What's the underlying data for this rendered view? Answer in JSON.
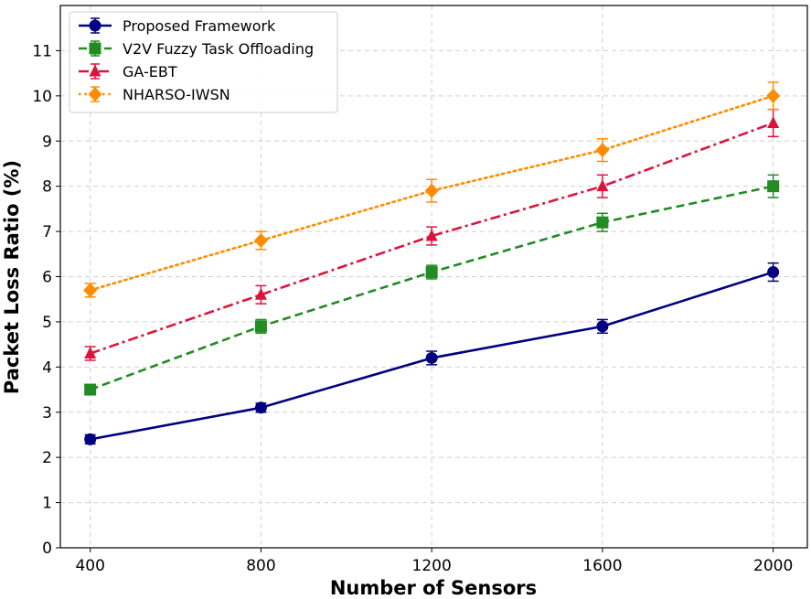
{
  "chart_data": {
    "type": "line",
    "title": "",
    "xlabel": "Number of Sensors",
    "ylabel": "Packet Loss Ratio (%)",
    "x": [
      400,
      800,
      1200,
      1600,
      2000
    ],
    "x_tick_labels": [
      "400",
      "800",
      "1200",
      "1600",
      "2000"
    ],
    "xlim": [
      330,
      2080
    ],
    "ylim": [
      0,
      12
    ],
    "y_ticks": [
      0,
      1,
      2,
      3,
      4,
      5,
      6,
      7,
      8,
      9,
      10,
      11
    ],
    "y_tick_labels": [
      "0",
      "1",
      "2",
      "3",
      "4",
      "5",
      "6",
      "7",
      "8",
      "9",
      "10",
      "11"
    ],
    "grid": true,
    "legend_position": "top-left",
    "series": [
      {
        "name": "Proposed Framework",
        "values": [
          2.4,
          3.1,
          4.2,
          4.9,
          6.1
        ],
        "errors": [
          0.1,
          0.1,
          0.15,
          0.15,
          0.2
        ],
        "color": "#000080",
        "line_style": "solid",
        "marker": "circle"
      },
      {
        "name": "V2V Fuzzy Task Offloading",
        "values": [
          3.5,
          4.9,
          6.1,
          7.2,
          8.0
        ],
        "errors": [
          0.1,
          0.15,
          0.15,
          0.2,
          0.25
        ],
        "color": "#228b22",
        "line_style": "dashed",
        "marker": "square"
      },
      {
        "name": "GA-EBT",
        "values": [
          4.3,
          5.6,
          6.9,
          8.0,
          9.4
        ],
        "errors": [
          0.15,
          0.2,
          0.2,
          0.25,
          0.3
        ],
        "color": "#dc143c",
        "line_style": "dashdot",
        "marker": "triangle"
      },
      {
        "name": "NHARSO-IWSN",
        "values": [
          5.7,
          6.8,
          7.9,
          8.8,
          10.0
        ],
        "errors": [
          0.15,
          0.2,
          0.25,
          0.25,
          0.3
        ],
        "color": "#ff8c00",
        "line_style": "dotted",
        "marker": "diamond"
      }
    ]
  }
}
